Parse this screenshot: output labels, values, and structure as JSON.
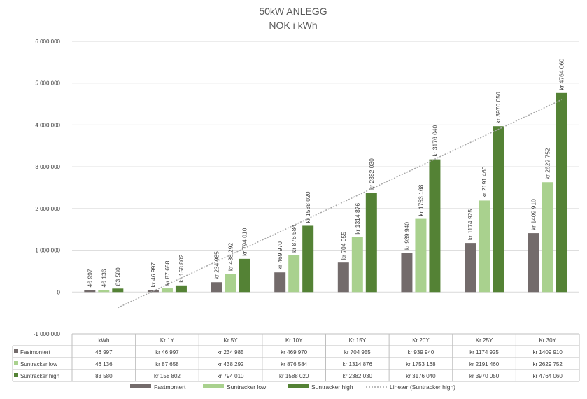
{
  "chart_data": {
    "type": "bar",
    "title": "50kW ANLEGG",
    "subtitle": "NOK i kWh",
    "categories": [
      "kWh",
      "Kr 1Y",
      "Kr 5Y",
      "Kr 10Y",
      "Kr 15Y",
      "Kr 20Y",
      "Kr 25Y",
      "Kr 30Y"
    ],
    "ylim": [
      -1000000,
      6000000
    ],
    "y_ticks": [
      -1000000,
      0,
      1000000,
      2000000,
      3000000,
      4000000,
      5000000,
      6000000
    ],
    "y_tick_labels": [
      "-1 000 000",
      "0",
      "1 000 000",
      "2 000 000",
      "3 000 000",
      "4 000 000",
      "5 000 000",
      "6 000 000"
    ],
    "grid": true,
    "legend_position": "bottom",
    "data_table": true,
    "series": [
      {
        "name": "Fastmontert",
        "color": "#736b6b",
        "values": [
          46997,
          46997,
          234985,
          469970,
          704955,
          939940,
          1174925,
          1409910
        ],
        "labels": [
          "46 997",
          "kr 46 997",
          "kr 234 985",
          "kr 469 970",
          "kr 704 955",
          "kr 939 940",
          "kr 1174 925",
          "kr 1409 910"
        ]
      },
      {
        "name": "Suntracker low",
        "color": "#a9d18e",
        "values": [
          46136,
          87658,
          438292,
          876584,
          1314876,
          1753168,
          2191460,
          2629752
        ],
        "labels": [
          "46 136",
          "kr 87 658",
          "kr 438 292",
          "kr 876 584",
          "kr 1314 876",
          "kr 1753 168",
          "kr 2191 460",
          "kr 2629 752"
        ]
      },
      {
        "name": "Suntracker high",
        "color": "#548235",
        "values": [
          83580,
          158802,
          794010,
          1588020,
          2382030,
          3176040,
          3970050,
          4764060
        ],
        "labels": [
          "83 580",
          "kr 158 802",
          "kr 794 010",
          "kr 1588 020",
          "kr 2382 030",
          "kr 3176 040",
          "kr 3970 050",
          "kr 4764 060"
        ]
      }
    ],
    "trendline": {
      "name": "Lineær (Suntracker high)",
      "type": "linear",
      "of_series": "Suntracker high",
      "color": "#a6a6a6"
    }
  }
}
